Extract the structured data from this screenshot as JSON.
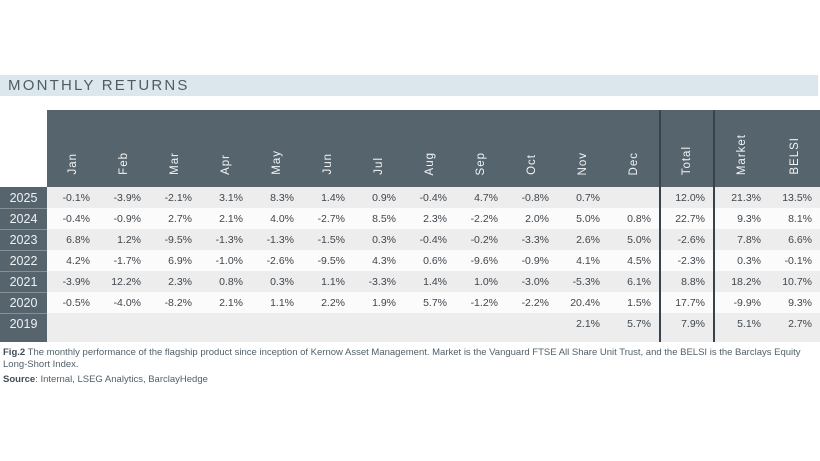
{
  "chart_data": {
    "type": "table",
    "title": "MONTHLY RETURNS",
    "month_columns": [
      "Jan",
      "Feb",
      "Mar",
      "Apr",
      "May",
      "Jun",
      "Jul",
      "Aug",
      "Sep",
      "Oct",
      "Nov",
      "Dec"
    ],
    "summary_columns": [
      "Total",
      "Market",
      "BELSI"
    ],
    "rows": [
      {
        "year": "2025",
        "values": [
          "-0.1%",
          "-3.9%",
          "-2.1%",
          "3.1%",
          "8.3%",
          "1.4%",
          "0.9%",
          "-0.4%",
          "4.7%",
          "-0.8%",
          "0.7%",
          "",
          "12.0%",
          "21.3%",
          "13.5%"
        ]
      },
      {
        "year": "2024",
        "values": [
          "-0.4%",
          "-0.9%",
          "2.7%",
          "2.1%",
          "4.0%",
          "-2.7%",
          "8.5%",
          "2.3%",
          "-2.2%",
          "2.0%",
          "5.0%",
          "0.8%",
          "22.7%",
          "9.3%",
          "8.1%"
        ]
      },
      {
        "year": "2023",
        "values": [
          "6.8%",
          "1.2%",
          "-9.5%",
          "-1.3%",
          "-1.3%",
          "-1.5%",
          "0.3%",
          "-0.4%",
          "-0.2%",
          "-3.3%",
          "2.6%",
          "5.0%",
          "-2.6%",
          "7.8%",
          "6.6%"
        ]
      },
      {
        "year": "2022",
        "values": [
          "4.2%",
          "-1.7%",
          "6.9%",
          "-1.0%",
          "-2.6%",
          "-9.5%",
          "4.3%",
          "0.6%",
          "-9.6%",
          "-0.9%",
          "4.1%",
          "4.5%",
          "-2.3%",
          "0.3%",
          "-0.1%"
        ]
      },
      {
        "year": "2021",
        "values": [
          "-3.9%",
          "12.2%",
          "2.3%",
          "0.8%",
          "0.3%",
          "1.1%",
          "-3.3%",
          "1.4%",
          "1.0%",
          "-3.0%",
          "-5.3%",
          "6.1%",
          "8.8%",
          "18.2%",
          "10.7%"
        ]
      },
      {
        "year": "2020",
        "values": [
          "-0.5%",
          "-4.0%",
          "-8.2%",
          "2.1%",
          "1.1%",
          "2.2%",
          "1.9%",
          "5.7%",
          "-1.2%",
          "-2.2%",
          "20.4%",
          "1.5%",
          "17.7%",
          "-9.9%",
          "9.3%"
        ]
      },
      {
        "year": "2019",
        "values": [
          "",
          "",
          "",
          "",
          "",
          "",
          "",
          "",
          "",
          "",
          "2.1%",
          "5.7%",
          "7.9%",
          "5.1%",
          "2.7%"
        ]
      }
    ]
  },
  "footnote": {
    "fig_label": "Fig.2",
    "fig_text": " The monthly performance of the flagship product since inception of Kernow Asset Management. Market is the Vanguard FTSE All Share Unit Trust, and the BELSI is the Barclays Equity Long-Short Index.",
    "source_label": "Source",
    "source_text": ": Internal, LSEG Analytics, BarclayHedge"
  },
  "colors": {
    "header_bg": "#56646d",
    "title_bar_bg": "#dbe7ed",
    "row_stripe": "#ededed",
    "row_plain": "#fbfbfb",
    "column_separator": "#39434b",
    "body_text": "#3e464d"
  }
}
